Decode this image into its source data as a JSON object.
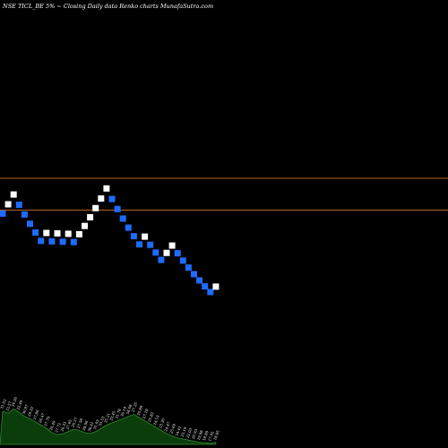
{
  "header": {
    "caption": "NSE TICL_BE 5% ~  Closing Daily data  Renko  charts MunafaSutra.com"
  },
  "chart_data": {
    "type": "renko",
    "title": "NSE TICL_BE 5% ~ Closing Daily data Renko charts MunafaSutra.com",
    "colors": {
      "background": "#000000",
      "up_brick": "#ffffff",
      "down_brick": "#1e6bff",
      "reference_line": "#b5651d",
      "volume_fill": "#0b3d0b",
      "volume_stroke": "#2e8b2e"
    },
    "grid": false,
    "reference_lines": [
      {
        "value": 36.9
      },
      {
        "value": 31.6
      }
    ],
    "bricks": [
      {
        "direction": "down",
        "close": 31.02
      },
      {
        "direction": "up",
        "close": 32.57
      },
      {
        "direction": "up",
        "close": 34.2
      },
      {
        "direction": "down",
        "close": 32.49
      },
      {
        "direction": "down",
        "close": 30.87
      },
      {
        "direction": "down",
        "close": 29.32
      },
      {
        "direction": "down",
        "close": 27.86
      },
      {
        "direction": "down",
        "close": 26.47
      },
      {
        "direction": "up",
        "close": 27.79
      },
      {
        "direction": "down",
        "close": 26.4
      },
      {
        "direction": "up",
        "close": 27.72
      },
      {
        "direction": "down",
        "close": 26.33
      },
      {
        "direction": "up",
        "close": 27.65
      },
      {
        "direction": "down",
        "close": 26.27
      },
      {
        "direction": "up",
        "close": 27.58
      },
      {
        "direction": "up",
        "close": 28.96
      },
      {
        "direction": "up",
        "close": 30.41
      },
      {
        "direction": "up",
        "close": 31.93
      },
      {
        "direction": "up",
        "close": 33.53
      },
      {
        "direction": "up",
        "close": 35.21
      },
      {
        "direction": "down",
        "close": 33.45
      },
      {
        "direction": "down",
        "close": 31.78
      },
      {
        "direction": "down",
        "close": 30.19
      },
      {
        "direction": "down",
        "close": 28.68
      },
      {
        "direction": "down",
        "close": 27.25
      },
      {
        "direction": "down",
        "close": 25.89
      },
      {
        "direction": "up",
        "close": 27.18
      },
      {
        "direction": "down",
        "close": 25.82
      },
      {
        "direction": "down",
        "close": 24.53
      },
      {
        "direction": "down",
        "close": 23.3
      },
      {
        "direction": "up",
        "close": 24.47
      },
      {
        "direction": "up",
        "close": 25.69
      },
      {
        "direction": "down",
        "close": 24.41
      },
      {
        "direction": "down",
        "close": 23.19
      },
      {
        "direction": "down",
        "close": 22.03
      },
      {
        "direction": "down",
        "close": 20.93
      },
      {
        "direction": "down",
        "close": 19.88
      },
      {
        "direction": "down",
        "close": 18.89
      },
      {
        "direction": "down",
        "close": 17.95
      },
      {
        "direction": "up",
        "close": 18.85
      }
    ],
    "volume_profile": [
      0.62,
      0.58,
      0.66,
      0.6,
      0.52,
      0.48,
      0.42,
      0.36,
      0.3,
      0.22,
      0.18,
      0.2,
      0.24,
      0.28,
      0.26,
      0.22,
      0.2,
      0.24,
      0.3,
      0.36,
      0.4,
      0.44,
      0.48,
      0.52,
      0.56,
      0.5,
      0.44,
      0.38,
      0.32,
      0.26,
      0.2,
      0.16,
      0.12,
      0.1,
      0.08,
      0.06,
      0.04,
      0.03,
      0.02,
      0.04
    ]
  }
}
